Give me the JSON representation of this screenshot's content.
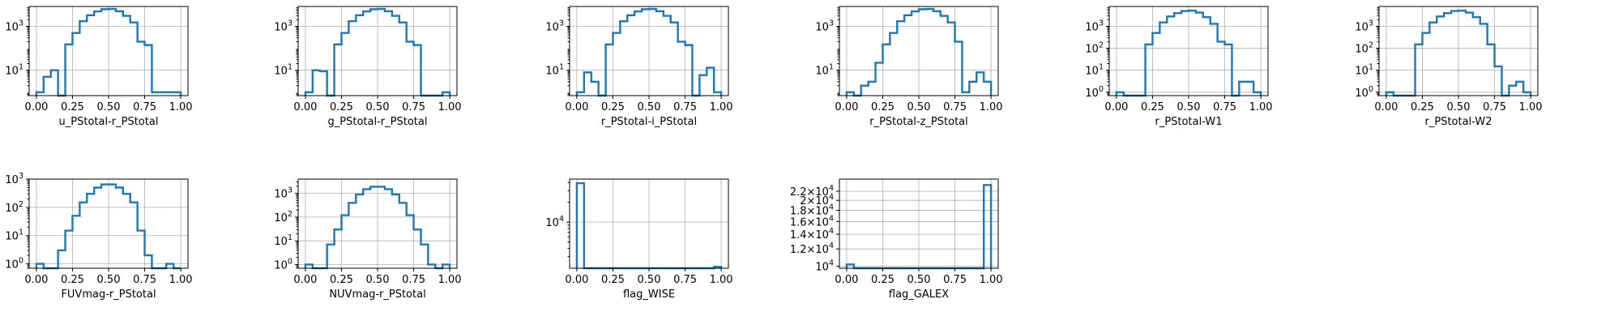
{
  "colors": {
    "series": "#1f77b4",
    "grid": "#b0b0b0",
    "axis": "#000000"
  },
  "chart_data": [
    {
      "type": "histogram",
      "xlabel": "u_PStotal-r_PStotal",
      "yscale": "log",
      "grid": true,
      "xlim": [
        -0.05,
        1.05
      ],
      "ylim": [
        0.7,
        8000
      ],
      "bin_edges": [
        0,
        0.05,
        0.1,
        0.15,
        0.2,
        0.25,
        0.3,
        0.35,
        0.4,
        0.45,
        0.5,
        0.55,
        0.6,
        0.65,
        0.7,
        0.75,
        0.8,
        0.85,
        0.9,
        0.95,
        1.0
      ],
      "counts": [
        1,
        5,
        10,
        0,
        150,
        500,
        1700,
        3200,
        4800,
        6000,
        6200,
        4900,
        3000,
        1500,
        200,
        140,
        1,
        1,
        1,
        1
      ],
      "xticks": [
        0,
        0.25,
        0.5,
        0.75,
        1.0
      ],
      "xtick_labels": [
        "0.00",
        "0.25",
        "0.50",
        "0.75",
        "1.00"
      ],
      "yticks": [
        10,
        1000
      ],
      "ytick_labels": [
        "10^1",
        "10^3"
      ]
    },
    {
      "type": "histogram",
      "xlabel": "g_PStotal-r_PStotal",
      "yscale": "log",
      "grid": true,
      "xlim": [
        -0.05,
        1.05
      ],
      "ylim": [
        0.7,
        8000
      ],
      "bin_edges": [
        0,
        0.05,
        0.1,
        0.15,
        0.2,
        0.25,
        0.3,
        0.35,
        0.4,
        0.45,
        0.5,
        0.55,
        0.6,
        0.65,
        0.7,
        0.75,
        0.8,
        0.85,
        0.9,
        0.95,
        1.0
      ],
      "counts": [
        1,
        10,
        9,
        0,
        150,
        500,
        1700,
        3200,
        4800,
        6000,
        6200,
        4900,
        3000,
        1500,
        200,
        140,
        0,
        0,
        0,
        1
      ],
      "xticks": [
        0,
        0.25,
        0.5,
        0.75,
        1.0
      ],
      "xtick_labels": [
        "0.00",
        "0.25",
        "0.50",
        "0.75",
        "1.00"
      ],
      "yticks": [
        10,
        1000
      ],
      "ytick_labels": [
        "10^1",
        "10^3"
      ]
    },
    {
      "type": "histogram",
      "xlabel": "r_PStotal-i_PStotal",
      "yscale": "log",
      "grid": true,
      "xlim": [
        -0.05,
        1.05
      ],
      "ylim": [
        0.7,
        8000
      ],
      "bin_edges": [
        0,
        0.05,
        0.1,
        0.15,
        0.2,
        0.25,
        0.3,
        0.35,
        0.4,
        0.45,
        0.5,
        0.55,
        0.6,
        0.65,
        0.7,
        0.75,
        0.8,
        0.85,
        0.9,
        0.95,
        1.0
      ],
      "counts": [
        1,
        8,
        3,
        0,
        150,
        500,
        1700,
        3200,
        4800,
        6000,
        6200,
        4900,
        3000,
        1500,
        200,
        140,
        0,
        6,
        13,
        1
      ],
      "xticks": [
        0,
        0.25,
        0.5,
        0.75,
        1.0
      ],
      "xtick_labels": [
        "0.00",
        "0.25",
        "0.50",
        "0.75",
        "1.00"
      ],
      "yticks": [
        10,
        1000
      ],
      "ytick_labels": [
        "10^1",
        "10^3"
      ]
    },
    {
      "type": "histogram",
      "xlabel": "r_PStotal-z_PStotal",
      "yscale": "log",
      "grid": true,
      "xlim": [
        -0.05,
        1.05
      ],
      "ylim": [
        0.7,
        8000
      ],
      "bin_edges": [
        0,
        0.05,
        0.1,
        0.15,
        0.2,
        0.25,
        0.3,
        0.35,
        0.4,
        0.45,
        0.5,
        0.55,
        0.6,
        0.65,
        0.7,
        0.75,
        0.8,
        0.85,
        0.9,
        0.95,
        1.0
      ],
      "counts": [
        1,
        0,
        2,
        3,
        22,
        150,
        500,
        1700,
        3200,
        4800,
        6000,
        6200,
        4900,
        3000,
        1500,
        200,
        1,
        3,
        8,
        3
      ],
      "xticks": [
        0,
        0.25,
        0.5,
        0.75,
        1.0
      ],
      "xtick_labels": [
        "0.00",
        "0.25",
        "0.50",
        "0.75",
        "1.00"
      ],
      "yticks": [
        10,
        1000
      ],
      "ytick_labels": [
        "10^1",
        "10^3"
      ]
    },
    {
      "type": "histogram",
      "xlabel": "r_PStotal-W1",
      "yscale": "log",
      "grid": true,
      "xlim": [
        -0.05,
        1.05
      ],
      "ylim": [
        0.7,
        8000
      ],
      "bin_edges": [
        0,
        0.05,
        0.1,
        0.15,
        0.2,
        0.25,
        0.3,
        0.35,
        0.4,
        0.45,
        0.5,
        0.55,
        0.6,
        0.65,
        0.7,
        0.75,
        0.8,
        0.85,
        0.9,
        0.95,
        1.0
      ],
      "counts": [
        1,
        0,
        0,
        0,
        150,
        500,
        1500,
        2800,
        4000,
        5000,
        5200,
        4200,
        2600,
        1300,
        200,
        150,
        0,
        3,
        3,
        1
      ],
      "xticks": [
        0,
        0.25,
        0.5,
        0.75,
        1.0
      ],
      "xtick_labels": [
        "0.00",
        "0.25",
        "0.50",
        "0.75",
        "1.00"
      ],
      "yticks": [
        1,
        10,
        100,
        1000
      ],
      "ytick_labels": [
        "10^0",
        "10^1",
        "10^2",
        "10^3"
      ]
    },
    {
      "type": "histogram",
      "xlabel": "r_PStotal-W2",
      "yscale": "log",
      "grid": true,
      "xlim": [
        -0.05,
        1.05
      ],
      "ylim": [
        0.7,
        8000
      ],
      "bin_edges": [
        0,
        0.05,
        0.1,
        0.15,
        0.2,
        0.25,
        0.3,
        0.35,
        0.4,
        0.45,
        0.5,
        0.55,
        0.6,
        0.65,
        0.7,
        0.75,
        0.8,
        0.85,
        0.9,
        0.95,
        1.0
      ],
      "counts": [
        1,
        0,
        0,
        0,
        150,
        500,
        1500,
        2800,
        4000,
        5000,
        5200,
        4200,
        2600,
        1300,
        150,
        15,
        0,
        2,
        3,
        1
      ],
      "xticks": [
        0,
        0.25,
        0.5,
        0.75,
        1.0
      ],
      "xtick_labels": [
        "0.00",
        "0.25",
        "0.50",
        "0.75",
        "1.00"
      ],
      "yticks": [
        1,
        10,
        100,
        1000
      ],
      "ytick_labels": [
        "10^0",
        "10^1",
        "10^2",
        "10^3"
      ]
    },
    {
      "type": "histogram",
      "xlabel": "FUVmag-r_PStotal",
      "yscale": "log",
      "grid": true,
      "xlim": [
        -0.05,
        1.05
      ],
      "ylim": [
        0.7,
        1000
      ],
      "bin_edges": [
        0,
        0.05,
        0.1,
        0.15,
        0.2,
        0.25,
        0.3,
        0.35,
        0.4,
        0.45,
        0.5,
        0.55,
        0.6,
        0.65,
        0.7,
        0.75,
        0.8,
        0.85,
        0.9,
        0.95,
        1.0
      ],
      "counts": [
        1,
        0,
        0,
        3,
        15,
        50,
        150,
        300,
        500,
        650,
        650,
        500,
        300,
        150,
        15,
        2,
        0,
        0,
        1,
        0
      ],
      "xticks": [
        0,
        0.25,
        0.5,
        0.75,
        1.0
      ],
      "xtick_labels": [
        "0.00",
        "0.25",
        "0.50",
        "0.75",
        "1.00"
      ],
      "yticks": [
        1,
        10,
        100,
        1000
      ],
      "ytick_labels": [
        "10^0",
        "10^1",
        "10^2",
        "10^3"
      ]
    },
    {
      "type": "histogram",
      "xlabel": "NUVmag-r_PStotal",
      "yscale": "log",
      "grid": true,
      "xlim": [
        -0.05,
        1.05
      ],
      "ylim": [
        0.7,
        4000
      ],
      "bin_edges": [
        0,
        0.05,
        0.1,
        0.15,
        0.2,
        0.25,
        0.3,
        0.35,
        0.4,
        0.45,
        0.5,
        0.55,
        0.6,
        0.65,
        0.7,
        0.75,
        0.8,
        0.85,
        0.9,
        0.95,
        1.0
      ],
      "counts": [
        1,
        0,
        0,
        7,
        30,
        120,
        400,
        900,
        1500,
        1900,
        1900,
        1500,
        900,
        400,
        120,
        30,
        7,
        1,
        0,
        1
      ],
      "xticks": [
        0,
        0.25,
        0.5,
        0.75,
        1.0
      ],
      "xtick_labels": [
        "0.00",
        "0.25",
        "0.50",
        "0.75",
        "1.00"
      ],
      "yticks": [
        1,
        10,
        100,
        1000
      ],
      "ytick_labels": [
        "10^0",
        "10^1",
        "10^2",
        "10^3"
      ]
    },
    {
      "type": "histogram",
      "xlabel": "flag_WISE",
      "yscale": "log",
      "grid": true,
      "xlim": [
        -0.05,
        1.05
      ],
      "ylim": [
        2000,
        45000
      ],
      "bin_edges": [
        0,
        0.05,
        0.1,
        0.15,
        0.2,
        0.25,
        0.3,
        0.35,
        0.4,
        0.45,
        0.5,
        0.55,
        0.6,
        0.65,
        0.7,
        0.75,
        0.8,
        0.85,
        0.9,
        0.95,
        1.0
      ],
      "counts": [
        39000,
        0,
        0,
        0,
        0,
        0,
        0,
        0,
        0,
        0,
        0,
        0,
        0,
        0,
        0,
        0,
        0,
        0,
        0,
        2100
      ],
      "xticks": [
        0,
        0.25,
        0.5,
        0.75,
        1.0
      ],
      "xtick_labels": [
        "0.00",
        "0.25",
        "0.50",
        "0.75",
        "1.00"
      ],
      "yticks": [
        10000
      ],
      "ytick_labels": [
        "10^4"
      ]
    },
    {
      "type": "histogram",
      "xlabel": "flag_GALEX",
      "yscale": "log",
      "grid": true,
      "xlim": [
        -0.05,
        1.05
      ],
      "ylim": [
        9800,
        25000
      ],
      "bin_edges": [
        0,
        0.05,
        0.1,
        0.15,
        0.2,
        0.25,
        0.3,
        0.35,
        0.4,
        0.45,
        0.5,
        0.55,
        0.6,
        0.65,
        0.7,
        0.75,
        0.8,
        0.85,
        0.9,
        0.95,
        1.0
      ],
      "counts": [
        10200,
        0,
        0,
        0,
        0,
        0,
        0,
        0,
        0,
        0,
        0,
        0,
        0,
        0,
        0,
        0,
        0,
        0,
        0,
        23500
      ],
      "xticks": [
        0,
        0.25,
        0.5,
        0.75,
        1.0
      ],
      "xtick_labels": [
        "0.00",
        "0.25",
        "0.50",
        "0.75",
        "1.00"
      ],
      "yticks": [
        10000,
        12000,
        14000,
        16000,
        18000,
        20000,
        22000
      ],
      "ytick_labels": [
        "10^4",
        "1.2×10^4",
        "1.4×10^4",
        "1.6×10^4",
        "1.8×10^4",
        "2×10^4",
        "2.2×10^4"
      ]
    }
  ]
}
